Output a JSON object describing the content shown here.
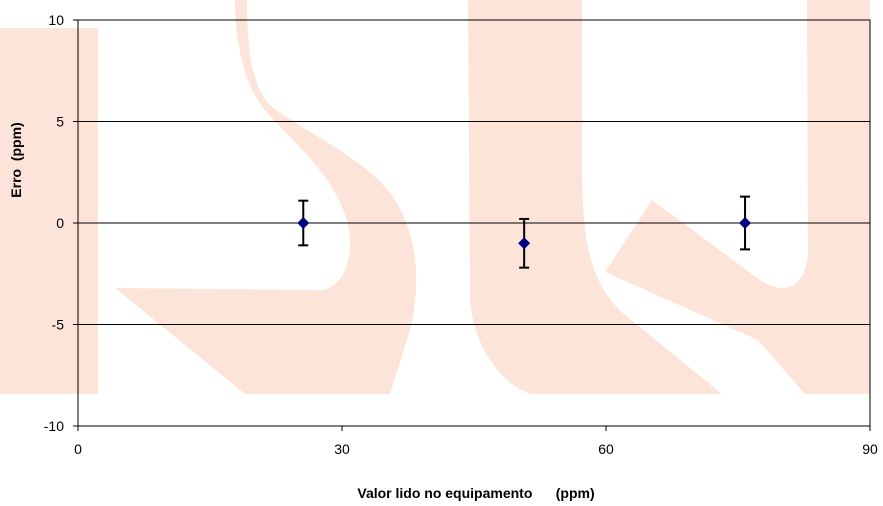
{
  "chart_data": {
    "type": "scatter",
    "title": "",
    "xlabel": "Valor lido no equipamento      (ppm)",
    "ylabel": "Erro  (ppm)",
    "xlim": [
      0,
      90
    ],
    "ylim": [
      -10,
      10
    ],
    "x_ticks": [
      "0",
      "30",
      "60",
      "90"
    ],
    "y_ticks": [
      "10",
      "5",
      "0",
      "-5",
      "-10"
    ],
    "grid": "horizontal",
    "legend": "none",
    "marker_color": "#000080",
    "watermark_color": "#fde4d9",
    "series": [
      {
        "x": [
          25.6,
          50.7,
          75.8
        ],
        "y": [
          0,
          -1,
          0
        ],
        "error": [
          1.1,
          1.2,
          1.3
        ]
      }
    ]
  }
}
